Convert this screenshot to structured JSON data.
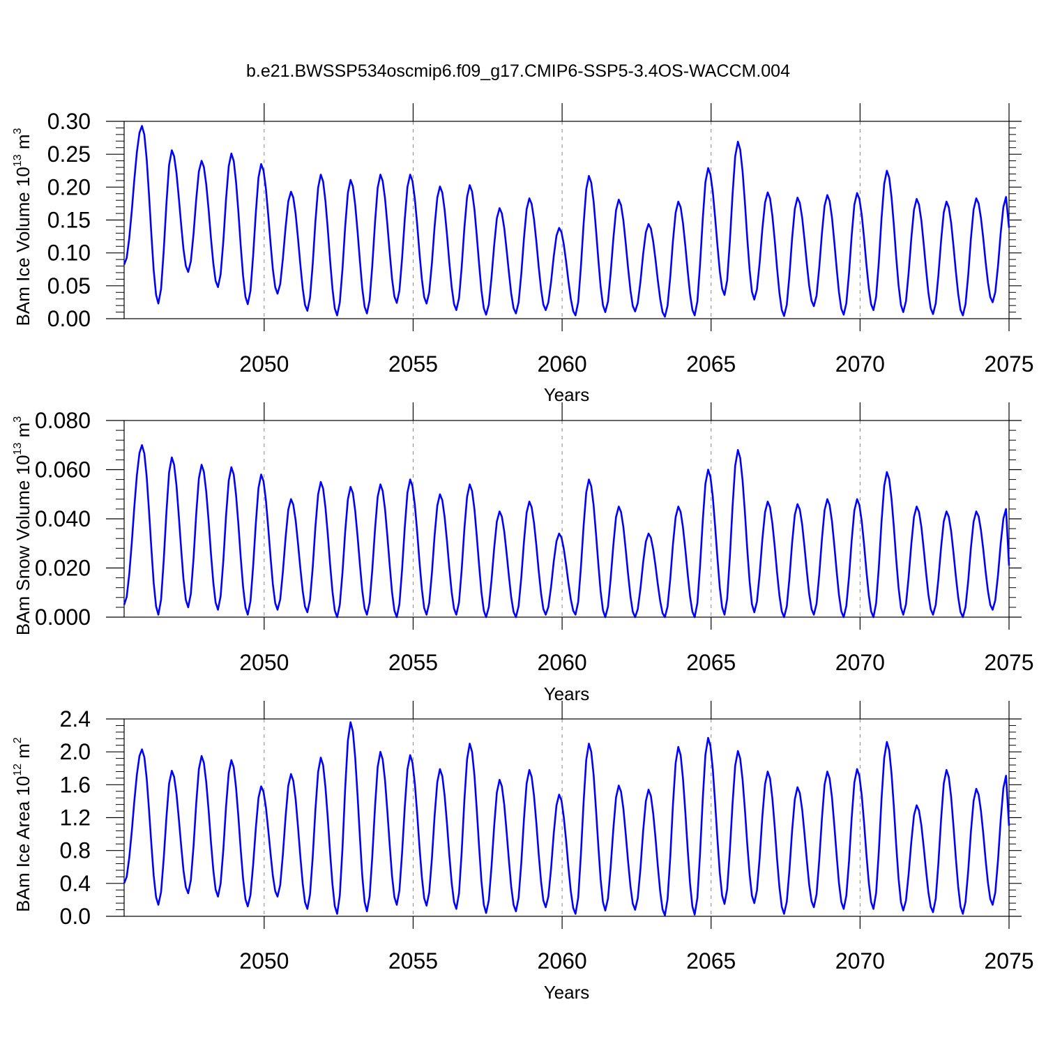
{
  "title": "b.e21.BWSSP534oscmip6.f09_g17.CMIP6-SSP5-3.4OS-WACCM.004",
  "colors": {
    "line": "#0000ff",
    "axis": "#000000",
    "grid": "#888888"
  },
  "chart_data": [
    {
      "type": "line",
      "ylabel_main": "BAm Ice Volume 10",
      "ylabel_sup": "13",
      "ylabel_unit": " m",
      "ylabel_unit_sup": "3",
      "xlabel": "Years",
      "xlim": [
        2045.3,
        2075.0
      ],
      "ylim": [
        0.0,
        0.3
      ],
      "yticks": [
        "0.00",
        "0.05",
        "0.10",
        "0.15",
        "0.20",
        "0.25",
        "0.30"
      ],
      "xticks": [
        "2050",
        "2055",
        "2060",
        "2065",
        "2070",
        "2075"
      ],
      "grid": "dashed vertical at 5-year ticks",
      "series": [
        {
          "peaks": [
            0.293,
            0.256,
            0.24,
            0.251,
            0.235,
            0.193,
            0.219,
            0.211,
            0.219,
            0.219,
            0.201,
            0.203,
            0.168,
            0.183,
            0.138,
            0.217,
            0.181,
            0.144,
            0.178,
            0.229,
            0.269,
            0.192,
            0.184,
            0.188,
            0.191,
            0.225,
            0.182,
            0.178,
            0.183,
            0.185
          ],
          "troughs": [
            0.023,
            0.071,
            0.048,
            0.022,
            0.038,
            0.012,
            0.005,
            0.008,
            0.024,
            0.023,
            0.013,
            0.006,
            0.008,
            0.013,
            0.005,
            0.01,
            0.011,
            0.003,
            0.005,
            0.036,
            0.029,
            0.004,
            0.019,
            0.006,
            0.013,
            0.01,
            0.007,
            0.005,
            0.025
          ],
          "start": 0.082,
          "end": 0.138
        }
      ]
    },
    {
      "type": "line",
      "ylabel_main": "BAm Snow Volume 10",
      "ylabel_sup": "13",
      "ylabel_unit": " m",
      "ylabel_unit_sup": "3",
      "xlabel": "Years",
      "xlim": [
        2045.3,
        2075.0
      ],
      "ylim": [
        0.0,
        0.08
      ],
      "yticks": [
        "0.000",
        "0.020",
        "0.040",
        "0.060",
        "0.080"
      ],
      "xticks": [
        "2050",
        "2055",
        "2060",
        "2065",
        "2070",
        "2075"
      ],
      "grid": "dashed vertical at 5-year ticks",
      "series": [
        {
          "peaks": [
            0.07,
            0.065,
            0.062,
            0.061,
            0.058,
            0.048,
            0.055,
            0.053,
            0.054,
            0.056,
            0.05,
            0.054,
            0.043,
            0.047,
            0.034,
            0.056,
            0.045,
            0.034,
            0.045,
            0.06,
            0.068,
            0.047,
            0.046,
            0.048,
            0.048,
            0.059,
            0.045,
            0.043,
            0.043,
            0.044
          ],
          "troughs": [
            0.001,
            0.004,
            0.003,
            0.001,
            0.003,
            0.002,
            0.0,
            0.001,
            0.0,
            0.001,
            0.001,
            0.0,
            0.0,
            0.001,
            0.001,
            0.0,
            0.0,
            0.0,
            0.0,
            0.001,
            0.002,
            0.0,
            0.001,
            0.0,
            0.0,
            0.001,
            0.001,
            0.0,
            0.003
          ],
          "start": 0.005,
          "end": 0.021
        }
      ]
    },
    {
      "type": "line",
      "ylabel_main": "BAm Ice Area 10",
      "ylabel_sup": "12",
      "ylabel_unit": " m",
      "ylabel_unit_sup": "2",
      "xlabel": "Years",
      "xlim": [
        2045.3,
        2075.0
      ],
      "ylim": [
        0.0,
        2.4
      ],
      "yticks": [
        "0.0",
        "0.4",
        "0.8",
        "1.2",
        "1.6",
        "2.0",
        "2.4"
      ],
      "xticks": [
        "2050",
        "2055",
        "2060",
        "2065",
        "2070",
        "2075"
      ],
      "grid": "dashed vertical at 5-year ticks",
      "series": [
        {
          "peaks": [
            2.03,
            1.77,
            1.95,
            1.9,
            1.58,
            1.73,
            1.93,
            2.36,
            2.0,
            1.96,
            1.79,
            2.1,
            1.66,
            1.78,
            1.48,
            2.1,
            1.59,
            1.54,
            2.06,
            2.17,
            2.01,
            1.76,
            1.57,
            1.76,
            1.79,
            2.12,
            1.35,
            1.78,
            1.55,
            1.71
          ],
          "troughs": [
            0.14,
            0.28,
            0.24,
            0.12,
            0.24,
            0.09,
            0.03,
            0.06,
            0.14,
            0.13,
            0.09,
            0.04,
            0.06,
            0.11,
            0.03,
            0.07,
            0.08,
            0.01,
            0.02,
            0.15,
            0.16,
            0.03,
            0.11,
            0.09,
            0.09,
            0.07,
            0.05,
            0.03,
            0.14
          ],
          "start": 0.4,
          "end": 1.1
        }
      ]
    }
  ]
}
